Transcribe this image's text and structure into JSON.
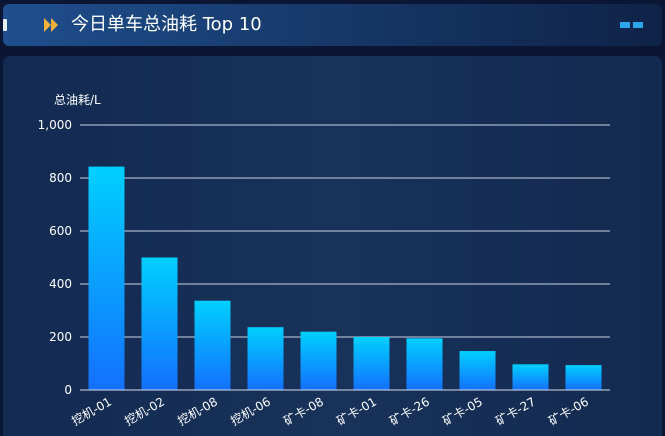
{
  "header": {
    "title": "今日单车总油耗 Top 10",
    "colors": {
      "arrow": "#f3b13a",
      "accent": "#2aa7ea"
    }
  },
  "chart_data": {
    "type": "bar",
    "title": "今日单车总油耗 Top 10",
    "ylabel": "总油耗/L",
    "xlabel": "",
    "ylim": [
      0,
      1000
    ],
    "yticks": [
      0,
      200,
      400,
      600,
      800,
      1000
    ],
    "ytick_labels": [
      "0",
      "200",
      "400",
      "600",
      "800",
      "1,000"
    ],
    "categories": [
      "挖机-01",
      "挖机-02",
      "挖机-08",
      "挖机-06",
      "矿卡-08",
      "矿卡-01",
      "矿卡-26",
      "矿卡-05",
      "矿卡-27",
      "矿卡-06"
    ],
    "values": [
      843,
      500,
      337,
      237,
      220,
      200,
      195,
      147,
      97,
      94
    ],
    "grid": true,
    "bar_gradient": [
      "#00d0ff",
      "#1470ff"
    ]
  }
}
